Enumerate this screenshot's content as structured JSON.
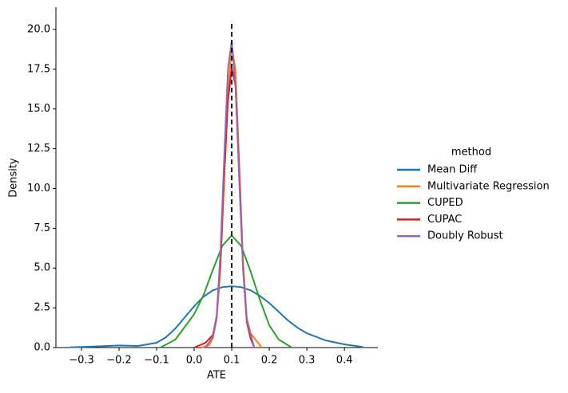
{
  "chart_data": {
    "type": "line",
    "x_label": "ATE",
    "y_label": "Density",
    "xlim": [
      -0.368,
      0.489
    ],
    "ylim": [
      0,
      21.4
    ],
    "xticks": [
      {
        "value": -0.3,
        "label": "−0.3"
      },
      {
        "value": -0.2,
        "label": "−0.2"
      },
      {
        "value": -0.1,
        "label": "−0.1"
      },
      {
        "value": 0,
        "label": "0.0"
      },
      0.1,
      0.2,
      0.3,
      0.4
    ],
    "yticks": [
      {
        "value": 0,
        "label": "0.0"
      },
      2.5,
      {
        "value": 5,
        "label": "5.0"
      },
      7.5,
      {
        "value": 10,
        "label": "10.0"
      },
      12.5,
      {
        "value": 15,
        "label": "15.0"
      },
      17.5,
      {
        "value": 20,
        "label": "20.0"
      }
    ],
    "reference_line": {
      "x": 0.1,
      "color": "#000000",
      "style": "dashed"
    },
    "legend_title": "method",
    "legend_position": "right",
    "series": [
      {
        "name": "Mean Diff",
        "color": "#1f77b4",
        "x": [
          -0.33,
          -0.3,
          -0.25,
          -0.2,
          -0.15,
          -0.1,
          -0.075,
          -0.05,
          -0.025,
          0,
          0.025,
          0.05,
          0.075,
          0.1,
          0.125,
          0.15,
          0.175,
          0.2,
          0.225,
          0.25,
          0.275,
          0.3,
          0.35,
          0.4,
          0.45
        ],
        "values": [
          0.02,
          0.04,
          0.08,
          0.13,
          0.1,
          0.3,
          0.65,
          1.2,
          1.9,
          2.6,
          3.2,
          3.6,
          3.8,
          3.85,
          3.8,
          3.6,
          3.25,
          2.8,
          2.25,
          1.7,
          1.25,
          0.9,
          0.45,
          0.2,
          0.03
        ]
      },
      {
        "name": "Multivariate Regression",
        "color": "#ff7f0e",
        "x": [
          0.02,
          0.04,
          0.05,
          0.06,
          0.07,
          0.08,
          0.09,
          0.1,
          0.11,
          0.12,
          0.13,
          0.14,
          0.15,
          0.16,
          0.17,
          0.18
        ],
        "values": [
          0,
          0.15,
          0.6,
          1.8,
          5,
          10.5,
          16,
          18.9,
          17.5,
          11.5,
          5.5,
          1.9,
          0.9,
          0.6,
          0.3,
          0
        ]
      },
      {
        "name": "CUPED",
        "color": "#2ca02c",
        "x": [
          -0.09,
          -0.05,
          0,
          0.025,
          0.05,
          0.075,
          0.1,
          0.125,
          0.15,
          0.175,
          0.2,
          0.225,
          0.26
        ],
        "values": [
          0,
          0.5,
          2.1,
          3.3,
          4.9,
          6.4,
          7.05,
          6.4,
          4.8,
          3.0,
          1.4,
          0.5,
          0
        ]
      },
      {
        "name": "CUPAC",
        "color": "#e31a1c",
        "x": [
          0.0,
          0.03,
          0.05,
          0.06,
          0.07,
          0.08,
          0.09,
          0.1,
          0.11,
          0.12,
          0.13,
          0.14,
          0.15,
          0.16
        ],
        "values": [
          0,
          0.3,
          0.8,
          2,
          5.5,
          11,
          15.5,
          17.6,
          16.5,
          11,
          5,
          1.6,
          0.6,
          0
        ]
      },
      {
        "name": "Doubly Robust",
        "color": "#9467bd",
        "x": [
          0.03,
          0.05,
          0.06,
          0.07,
          0.08,
          0.09,
          0.1,
          0.11,
          0.12,
          0.13,
          0.14,
          0.16
        ],
        "values": [
          0,
          0.7,
          2,
          6,
          12,
          17.5,
          19.3,
          16.5,
          10.5,
          5,
          1.7,
          0
        ]
      }
    ]
  }
}
